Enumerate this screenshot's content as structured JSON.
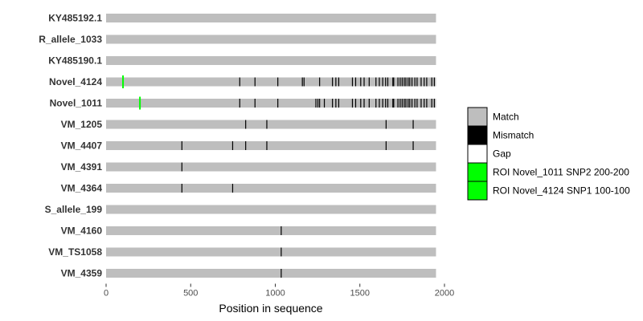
{
  "chart_data": {
    "type": "alignment",
    "xlabel": "Position in sequence",
    "xlim": [
      0,
      1950
    ],
    "x_ticks": [
      0,
      500,
      1000,
      1500,
      2000
    ],
    "sequences": [
      {
        "label": "KY485192.1",
        "length": 1950,
        "mismatches": [],
        "roi": []
      },
      {
        "label": "R_allele_1033",
        "length": 1950,
        "mismatches": [],
        "roi": []
      },
      {
        "label": "KY485190.1",
        "length": 1950,
        "mismatches": [],
        "roi": []
      },
      {
        "label": "Novel_4124",
        "length": 1950,
        "mismatches": [
          790,
          880,
          1015,
          1160,
          1170,
          1262,
          1338,
          1358,
          1375,
          1456,
          1475,
          1505,
          1525,
          1555,
          1595,
          1615,
          1635,
          1652,
          1665,
          1695,
          1700,
          1725,
          1738,
          1750,
          1762,
          1772,
          1785,
          1795,
          1808,
          1825,
          1838,
          1862,
          1880,
          1895,
          1925,
          1940
        ],
        "roi": [
          {
            "pos": 100,
            "ref": "ROI Novel_4124 SNP1 100-100"
          }
        ]
      },
      {
        "label": "Novel_1011",
        "length": 1950,
        "mismatches": [
          790,
          880,
          1015,
          1240,
          1252,
          1262,
          1290,
          1338,
          1358,
          1375,
          1456,
          1475,
          1505,
          1525,
          1555,
          1595,
          1615,
          1635,
          1652,
          1665,
          1695,
          1700,
          1725,
          1738,
          1750,
          1762,
          1772,
          1785,
          1795,
          1808,
          1825,
          1838,
          1862,
          1880,
          1895,
          1925,
          1940
        ],
        "roi": [
          {
            "pos": 200,
            "ref": "ROI Novel_1011 SNP2 200-200"
          }
        ]
      },
      {
        "label": "VM_1205",
        "length": 1950,
        "mismatches": [
          825,
          950,
          1655,
          1815
        ],
        "roi": []
      },
      {
        "label": "VM_4407",
        "length": 1950,
        "mismatches": [
          448,
          748,
          825,
          950,
          1655,
          1815
        ],
        "roi": []
      },
      {
        "label": "VM_4391",
        "length": 1950,
        "mismatches": [
          448
        ],
        "roi": []
      },
      {
        "label": "VM_4364",
        "length": 1950,
        "mismatches": [
          448,
          748
        ],
        "roi": []
      },
      {
        "label": "S_allele_199",
        "length": 1950,
        "mismatches": [],
        "roi": []
      },
      {
        "label": "VM_4160",
        "length": 1950,
        "mismatches": [
          1035
        ],
        "roi": []
      },
      {
        "label": "VM_TS1058",
        "length": 1950,
        "mismatches": [
          1035
        ],
        "roi": []
      },
      {
        "label": "VM_4359",
        "length": 1950,
        "mismatches": [
          1035
        ],
        "roi": []
      }
    ],
    "legend": {
      "placement": "right",
      "entries": [
        {
          "label": "Match",
          "color": "#bebebe"
        },
        {
          "label": "Mismatch",
          "color": "#000000"
        },
        {
          "label": "Gap",
          "color": "#ffffff"
        },
        {
          "label": "ROI Novel_1011 SNP2 200-200",
          "color": "#00ff00"
        },
        {
          "label": "ROI Novel_4124 SNP1 100-100",
          "color": "#00ff00"
        }
      ]
    },
    "colors": {
      "match": "#bebebe",
      "mismatch": "#000000",
      "roi": "#00ff00",
      "axis_text": "#4d4d4d",
      "label_text": "#333333"
    }
  }
}
